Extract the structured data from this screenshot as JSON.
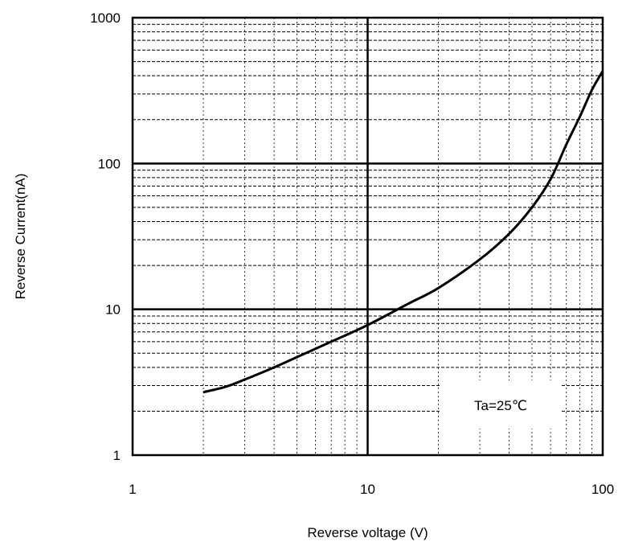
{
  "chart_data": {
    "type": "line",
    "xscale": "log",
    "yscale": "log",
    "xlim": [
      1,
      100
    ],
    "ylim": [
      1,
      1000
    ],
    "xlabel": "Reverse voltage (V)",
    "ylabel": "Reverse Current(nA)",
    "x_tick_labels": [
      "1",
      "10",
      "100"
    ],
    "y_tick_labels": [
      "1",
      "10",
      "100",
      "1000"
    ],
    "grid": true,
    "annotation": "Ta=25℃",
    "series": [
      {
        "x": [
          2,
          2.5,
          3,
          4,
          5,
          7,
          10,
          15,
          20,
          30,
          40,
          50,
          60,
          70,
          80,
          90,
          100
        ],
        "y": [
          2.7,
          2.95,
          3.3,
          4.0,
          4.7,
          6.0,
          7.8,
          11,
          14,
          22,
          33,
          50,
          78,
          135,
          210,
          320,
          430
        ]
      }
    ],
    "colors": {
      "line": "#000000",
      "major_grid": "#000000",
      "minor_grid": "#000000",
      "background": "#ffffff"
    }
  }
}
